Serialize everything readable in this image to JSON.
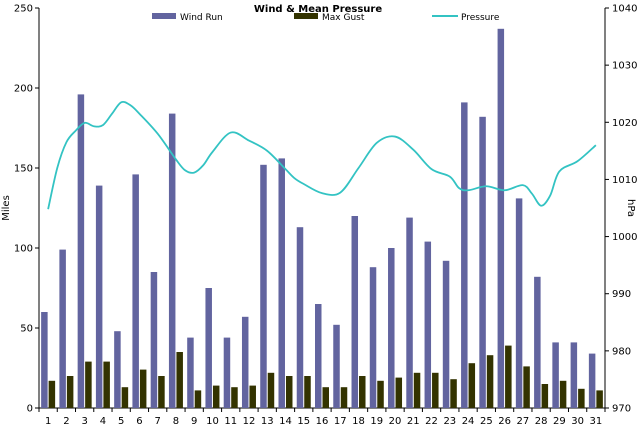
{
  "chart_data": {
    "type": "bar",
    "title": "Wind & Mean Pressure",
    "xlabel": "",
    "ylabel": "Miles",
    "ylabel_right": "hPa",
    "ylim": [
      0,
      250
    ],
    "ylim_right": [
      970,
      1040
    ],
    "yticks": [
      0,
      50,
      100,
      150,
      200,
      250
    ],
    "yticks_right": [
      970,
      980,
      990,
      1000,
      1010,
      1020,
      1030,
      1040
    ],
    "grid": false,
    "legend_position": "top",
    "categories": [
      "1",
      "2",
      "3",
      "4",
      "5",
      "6",
      "7",
      "8",
      "9",
      "10",
      "11",
      "12",
      "13",
      "14",
      "15",
      "16",
      "17",
      "18",
      "19",
      "20",
      "21",
      "22",
      "23",
      "24",
      "25",
      "26",
      "27",
      "28",
      "29",
      "30",
      "31"
    ],
    "series": [
      {
        "name": "Wind Run",
        "kind": "bar",
        "axis": "left",
        "color": "#62649f",
        "values": [
          60,
          99,
          196,
          139,
          48,
          146,
          85,
          184,
          44,
          75,
          44,
          57,
          152,
          156,
          113,
          65,
          52,
          120,
          88,
          100,
          119,
          104,
          92,
          191,
          182,
          237,
          131,
          82,
          41,
          41,
          34
        ]
      },
      {
        "name": "Max Gust",
        "kind": "bar",
        "axis": "left",
        "color": "#333300",
        "values": [
          17,
          20,
          29,
          29,
          13,
          24,
          20,
          35,
          11,
          14,
          13,
          14,
          22,
          20,
          20,
          13,
          13,
          20,
          17,
          19,
          22,
          22,
          18,
          28,
          33,
          39,
          26,
          15,
          17,
          12,
          11
        ]
      },
      {
        "name": "Pressure",
        "kind": "line",
        "axis": "right",
        "color": "#33c3c3",
        "x": [
          1,
          1.5,
          2,
          2.5,
          3,
          3.5,
          4,
          4.5,
          5,
          5.5,
          6,
          7,
          8,
          8.5,
          9,
          9.5,
          10,
          11,
          12,
          13,
          14,
          14.5,
          15,
          16,
          17,
          18,
          19,
          20,
          21,
          22,
          23,
          23.5,
          24,
          25,
          26,
          27,
          27.5,
          28,
          28.5,
          29,
          30,
          31
        ],
        "values": [
          1004.8,
          1012,
          1016.5,
          1018.5,
          1019.9,
          1019.3,
          1019.5,
          1021.5,
          1023.5,
          1023,
          1021.5,
          1018,
          1013.5,
          1011.6,
          1011.2,
          1012.5,
          1014.8,
          1018.2,
          1016.8,
          1015,
          1011.8,
          1010.2,
          1009.2,
          1007.6,
          1007.7,
          1012,
          1016.4,
          1017.5,
          1015.2,
          1011.8,
          1010.5,
          1008.5,
          1008.1,
          1008.8,
          1008.1,
          1009,
          1007.5,
          1005.4,
          1007.2,
          1011.4,
          1013.2,
          1016
        ]
      }
    ]
  }
}
